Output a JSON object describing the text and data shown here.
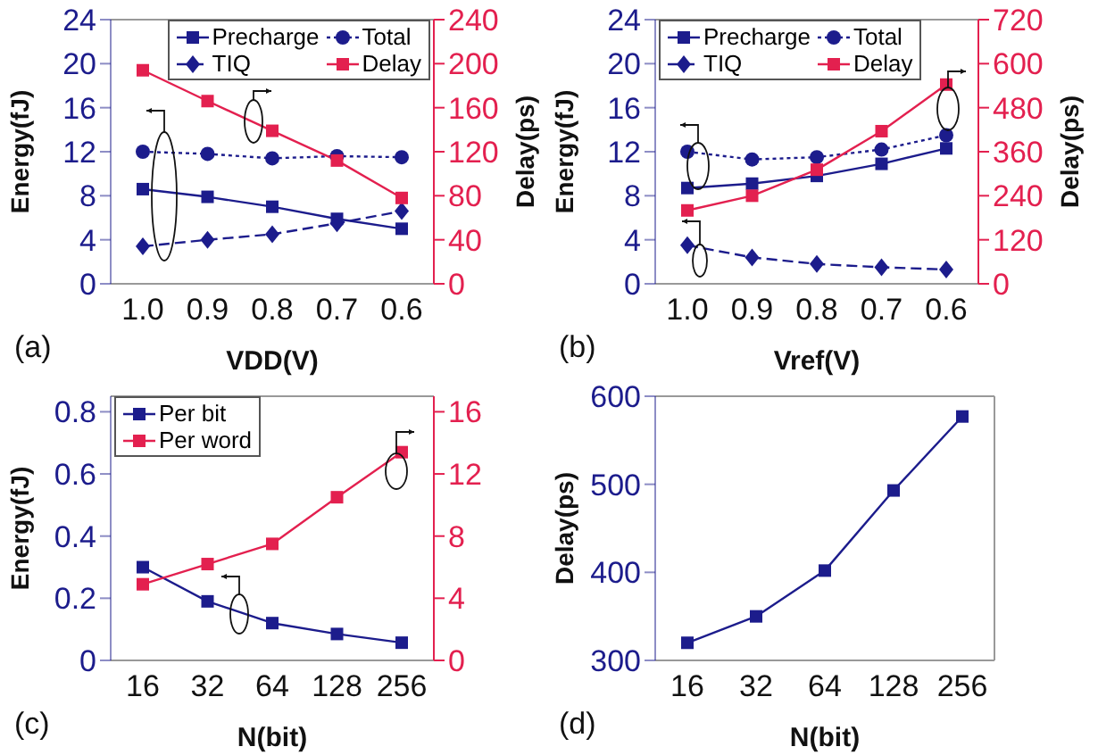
{
  "chart_data": [
    {
      "type": "line",
      "categories": [
        "1.0",
        "0.9",
        "0.8",
        "0.7",
        "0.6"
      ],
      "xlabel": "VDD(V)",
      "ylabel": "Energy(fJ)",
      "y2label": "Delay(ps)",
      "series": [
        {
          "name": "Precharge",
          "color": "#1c1c8c",
          "marker": "square",
          "line_style": "solid",
          "values": [
            8.6,
            7.9,
            7.0,
            5.9,
            5.0
          ]
        },
        {
          "name": "Total",
          "color": "#1c1c8c",
          "marker": "circle",
          "line_style": "dotted",
          "values": [
            12.0,
            11.8,
            11.4,
            11.6,
            11.5
          ]
        },
        {
          "name": "TIQ",
          "color": "#1c1c8c",
          "marker": "diamond",
          "line_style": "dashed",
          "values": [
            3.4,
            4.0,
            4.5,
            5.5,
            6.6
          ]
        },
        {
          "name": "Delay",
          "color": "#e3204f",
          "marker": "square",
          "line_style": "solid",
          "axis": "y2",
          "values": [
            194,
            166,
            139,
            112,
            78
          ]
        }
      ],
      "ylim": [
        0,
        24
      ],
      "yticks": [
        0,
        4,
        8,
        12,
        16,
        20,
        24
      ],
      "y2lim": [
        0,
        240
      ],
      "y2ticks": [
        0,
        40,
        80,
        120,
        160,
        200,
        240
      ],
      "grid": false,
      "legend": "top right",
      "annotations": [
        "(a)"
      ]
    },
    {
      "type": "line",
      "categories": [
        "1.0",
        "0.9",
        "0.8",
        "0.7",
        "0.6"
      ],
      "xlabel": "Vref(V)",
      "ylabel": "Energy(fJ)",
      "y2label": "Delay(ps)",
      "series": [
        {
          "name": "Precharge",
          "color": "#1c1c8c",
          "marker": "square",
          "line_style": "solid",
          "values": [
            8.7,
            9.1,
            9.8,
            10.9,
            12.3
          ]
        },
        {
          "name": "Total",
          "color": "#1c1c8c",
          "marker": "circle",
          "line_style": "dotted",
          "values": [
            12.0,
            11.3,
            11.5,
            12.2,
            13.5
          ]
        },
        {
          "name": "TIQ",
          "color": "#1c1c8c",
          "marker": "diamond",
          "line_style": "dashed",
          "values": [
            3.5,
            2.4,
            1.8,
            1.5,
            1.3
          ]
        },
        {
          "name": "Delay",
          "color": "#e3204f",
          "marker": "square",
          "line_style": "solid",
          "axis": "y2",
          "values": [
            200,
            240,
            311,
            416,
            543
          ]
        }
      ],
      "ylim": [
        0,
        24
      ],
      "yticks": [
        0,
        4,
        8,
        12,
        16,
        20,
        24
      ],
      "y2lim": [
        0,
        720
      ],
      "y2ticks": [
        0,
        120,
        240,
        360,
        480,
        600,
        720
      ],
      "grid": false,
      "legend": "top left",
      "annotations": [
        "(b)"
      ]
    },
    {
      "type": "line",
      "categories": [
        "16",
        "32",
        "64",
        "128",
        "256"
      ],
      "xlabel": "N(bit)",
      "ylabel": "Energy(fJ)",
      "series": [
        {
          "name": "Per bit",
          "color": "#1c1c8c",
          "marker": "square",
          "line_style": "solid",
          "values": [
            0.3,
            0.19,
            0.12,
            0.085,
            0.057
          ]
        },
        {
          "name": "Per word",
          "color": "#e3204f",
          "marker": "square",
          "line_style": "solid",
          "axis": "y2",
          "values": [
            4.9,
            6.2,
            7.5,
            10.5,
            13.4
          ]
        }
      ],
      "ylim": [
        0,
        0.85
      ],
      "yticks": [
        0,
        0.2,
        0.4,
        0.6,
        0.8
      ],
      "y2lim": [
        0,
        17
      ],
      "y2ticks": [
        0,
        4,
        8,
        12,
        16
      ],
      "grid": false,
      "legend": "top left",
      "annotations": [
        "(c)"
      ]
    },
    {
      "type": "line",
      "categories": [
        "16",
        "32",
        "64",
        "128",
        "256"
      ],
      "xlabel": "N(bit)",
      "ylabel": "Delay(ps)",
      "series": [
        {
          "color": "#1c1c8c",
          "marker": "square",
          "line_style": "solid",
          "values": [
            320,
            350,
            402,
            493,
            577
          ]
        }
      ],
      "ylim": [
        300,
        600
      ],
      "yticks": [
        300,
        400,
        500,
        600
      ],
      "grid": false,
      "annotations": [
        "(d)"
      ]
    }
  ]
}
